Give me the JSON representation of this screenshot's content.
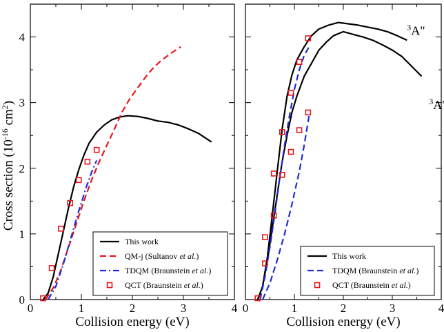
{
  "chart_data": [
    {
      "type": "line",
      "panel": "left",
      "xlabel": "Collision energy (eV)",
      "ylabel": "Cross section (10^-16 cm^2)",
      "xlim": [
        0,
        4
      ],
      "ylim": [
        0,
        4.5
      ],
      "xticks": [
        "0",
        "1",
        "2",
        "3",
        "4"
      ],
      "yticks": [
        "0",
        "1",
        "2",
        "3",
        "4"
      ],
      "legend_position": "bottom-right",
      "series": [
        {
          "name": "This work",
          "style": "solid",
          "color": "#000000",
          "points": [
            [
              0.25,
              0.0
            ],
            [
              0.35,
              0.1
            ],
            [
              0.45,
              0.35
            ],
            [
              0.55,
              0.7
            ],
            [
              0.65,
              1.05
            ],
            [
              0.75,
              1.4
            ],
            [
              0.85,
              1.72
            ],
            [
              0.95,
              1.98
            ],
            [
              1.05,
              2.2
            ],
            [
              1.15,
              2.38
            ],
            [
              1.3,
              2.55
            ],
            [
              1.45,
              2.66
            ],
            [
              1.6,
              2.74
            ],
            [
              1.75,
              2.78
            ],
            [
              1.9,
              2.8
            ],
            [
              2.1,
              2.79
            ],
            [
              2.3,
              2.76
            ],
            [
              2.5,
              2.72
            ],
            [
              2.7,
              2.7
            ],
            [
              2.9,
              2.66
            ],
            [
              3.1,
              2.6
            ],
            [
              3.3,
              2.53
            ],
            [
              3.55,
              2.4
            ]
          ]
        },
        {
          "name": "QM-j (Sultanov et al.)",
          "style": "dashed",
          "color": "#e8141b",
          "points": [
            [
              0.3,
              0.0
            ],
            [
              0.45,
              0.18
            ],
            [
              0.6,
              0.45
            ],
            [
              0.75,
              0.8
            ],
            [
              0.9,
              1.15
            ],
            [
              1.05,
              1.5
            ],
            [
              1.2,
              1.82
            ],
            [
              1.35,
              2.1
            ],
            [
              1.5,
              2.35
            ],
            [
              1.65,
              2.6
            ],
            [
              1.8,
              2.86
            ],
            [
              1.95,
              3.06
            ],
            [
              2.1,
              3.22
            ],
            [
              2.25,
              3.38
            ],
            [
              2.4,
              3.52
            ],
            [
              2.55,
              3.63
            ],
            [
              2.7,
              3.72
            ],
            [
              2.85,
              3.8
            ],
            [
              2.95,
              3.85
            ]
          ]
        },
        {
          "name": "TDQM (Braunstein et al.)",
          "style": "dashdot",
          "color": "#1f2ad6",
          "points": [
            [
              0.35,
              0.0
            ],
            [
              0.5,
              0.2
            ],
            [
              0.65,
              0.55
            ],
            [
              0.8,
              0.95
            ],
            [
              0.95,
              1.35
            ],
            [
              1.1,
              1.72
            ],
            [
              1.22,
              1.98
            ],
            [
              1.3,
              2.12
            ]
          ]
        },
        {
          "name": "QCT (Braunstein et al.)",
          "style": "markers",
          "color": "#e8141b",
          "points": [
            [
              0.25,
              0.02
            ],
            [
              0.42,
              0.48
            ],
            [
              0.6,
              1.08
            ],
            [
              0.78,
              1.47
            ],
            [
              0.95,
              1.82
            ],
            [
              1.12,
              2.1
            ],
            [
              1.3,
              2.28
            ]
          ]
        }
      ]
    },
    {
      "type": "line",
      "panel": "right",
      "xlabel": "Collision energy (eV)",
      "ylabel": "",
      "xlim": [
        0,
        4
      ],
      "ylim": [
        0,
        4.5
      ],
      "xticks": [
        "0",
        "1",
        "2",
        "3",
        "4"
      ],
      "yticks": [],
      "legend_position": "bottom-right",
      "annotations": [
        {
          "text": "A\"",
          "sup": "3",
          "x": 3.3,
          "y": 4.03
        },
        {
          "text": "A'",
          "sup": "3",
          "x": 3.75,
          "y": 2.9
        }
      ],
      "series": [
        {
          "name": "This work",
          "style": "solid",
          "color": "#000000",
          "points": [
            [
              0.25,
              0.0
            ],
            [
              0.35,
              0.2
            ],
            [
              0.45,
              0.65
            ],
            [
              0.55,
              1.3
            ],
            [
              0.65,
              1.95
            ],
            [
              0.75,
              2.6
            ],
            [
              0.85,
              3.1
            ],
            [
              0.95,
              3.42
            ],
            [
              1.05,
              3.65
            ],
            [
              1.2,
              3.85
            ],
            [
              1.35,
              4.02
            ],
            [
              1.5,
              4.12
            ],
            [
              1.7,
              4.18
            ],
            [
              1.9,
              4.22
            ],
            [
              2.1,
              4.2
            ],
            [
              2.3,
              4.18
            ],
            [
              2.5,
              4.15
            ],
            [
              2.7,
              4.12
            ],
            [
              2.9,
              4.08
            ],
            [
              3.1,
              4.02
            ],
            [
              3.3,
              3.95
            ]
          ]
        },
        {
          "name": "This work (3A')",
          "style": "solid",
          "color": "#000000",
          "points": [
            [
              0.25,
              0.0
            ],
            [
              0.35,
              0.2
            ],
            [
              0.45,
              0.6
            ],
            [
              0.55,
              1.1
            ],
            [
              0.65,
              1.6
            ],
            [
              0.75,
              2.1
            ],
            [
              0.85,
              2.5
            ],
            [
              0.95,
              2.85
            ],
            [
              1.05,
              3.1
            ],
            [
              1.2,
              3.4
            ],
            [
              1.35,
              3.6
            ],
            [
              1.5,
              3.8
            ],
            [
              1.65,
              3.92
            ],
            [
              1.8,
              4.02
            ],
            [
              2.0,
              4.08
            ],
            [
              2.2,
              4.04
            ],
            [
              2.4,
              4.0
            ],
            [
              2.6,
              3.95
            ],
            [
              2.8,
              3.88
            ],
            [
              3.0,
              3.8
            ],
            [
              3.2,
              3.7
            ],
            [
              3.4,
              3.55
            ],
            [
              3.6,
              3.4
            ]
          ]
        },
        {
          "name": "TDQM (Braunstein et al.)",
          "style": "dashed",
          "color": "#1f2ad6",
          "points": [
            [
              0.3,
              0.0
            ],
            [
              0.4,
              0.35
            ],
            [
              0.5,
              0.8
            ],
            [
              0.6,
              1.3
            ],
            [
              0.7,
              1.85
            ],
            [
              0.8,
              2.35
            ],
            [
              0.9,
              2.8
            ],
            [
              1.0,
              3.2
            ],
            [
              1.1,
              3.5
            ],
            [
              1.2,
              3.72
            ],
            [
              1.3,
              3.85
            ]
          ]
        },
        {
          "name": "TDQM (3A')",
          "style": "dashed",
          "color": "#1f2ad6",
          "points": [
            [
              0.35,
              0.0
            ],
            [
              0.5,
              0.25
            ],
            [
              0.65,
              0.6
            ],
            [
              0.8,
              1.0
            ],
            [
              0.95,
              1.45
            ],
            [
              1.1,
              1.95
            ],
            [
              1.2,
              2.35
            ],
            [
              1.3,
              2.8
            ]
          ]
        },
        {
          "name": "QCT (Braunstein et al.)",
          "style": "markers",
          "color": "#e8141b",
          "points": [
            [
              0.25,
              0.02
            ],
            [
              0.4,
              0.55
            ],
            [
              0.4,
              0.95
            ],
            [
              0.58,
              1.28
            ],
            [
              0.58,
              1.92
            ],
            [
              0.75,
              1.9
            ],
            [
              0.75,
              2.55
            ],
            [
              0.93,
              2.25
            ],
            [
              0.93,
              3.15
            ],
            [
              1.1,
              2.58
            ],
            [
              1.1,
              3.62
            ],
            [
              1.28,
              2.85
            ],
            [
              1.28,
              3.98
            ]
          ]
        }
      ]
    }
  ]
}
